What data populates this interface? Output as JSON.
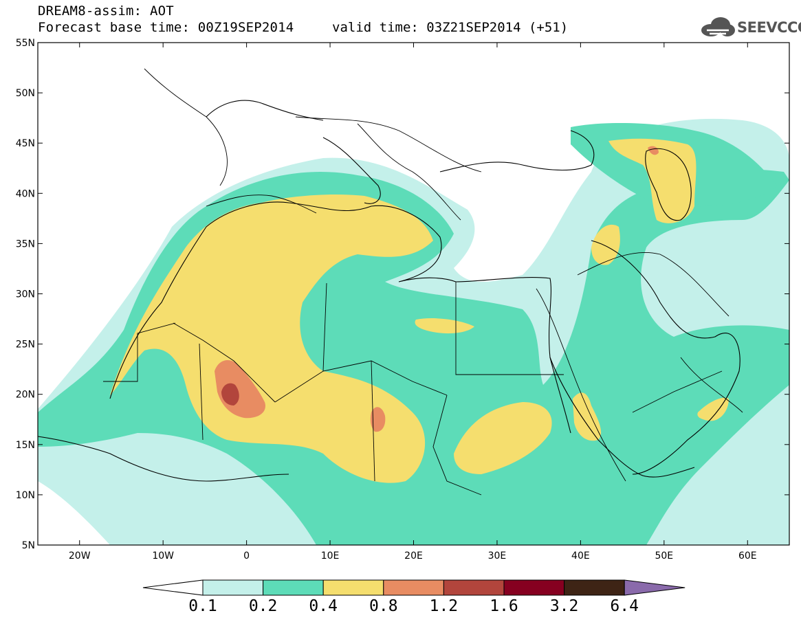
{
  "title": {
    "line1": "DREAM8-assim: AOT",
    "line2": "Forecast base time: 00Z19SEP2014",
    "valid": "valid time: 03Z21SEP2014 (+51)"
  },
  "logo": {
    "text": "SEEVCCC",
    "icon": "cloud-logo-icon"
  },
  "map": {
    "x_ticks": [
      "20W",
      "10W",
      "0",
      "10E",
      "20E",
      "30E",
      "40E",
      "50E",
      "60E"
    ],
    "x_tick_lons": [
      -20,
      -10,
      0,
      10,
      20,
      30,
      40,
      50,
      60
    ],
    "y_ticks": [
      "55N",
      "50N",
      "45N",
      "40N",
      "35N",
      "30N",
      "25N",
      "20N",
      "15N",
      "10N",
      "5N"
    ],
    "y_tick_lats": [
      55,
      50,
      45,
      40,
      35,
      30,
      25,
      20,
      15,
      10,
      5
    ],
    "lon_range": [
      -25,
      65
    ],
    "lat_range": [
      5,
      55
    ]
  },
  "colorbar": {
    "labels": [
      "0.1",
      "0.2",
      "0.4",
      "0.8",
      "1.2",
      "1.6",
      "3.2",
      "6.4"
    ],
    "colors": [
      "#c4f0ea",
      "#5ddcb8",
      "#f5de6e",
      "#e88c62",
      "#b2453c",
      "#860020",
      "#3e2415",
      "#8a6aab"
    ]
  }
}
